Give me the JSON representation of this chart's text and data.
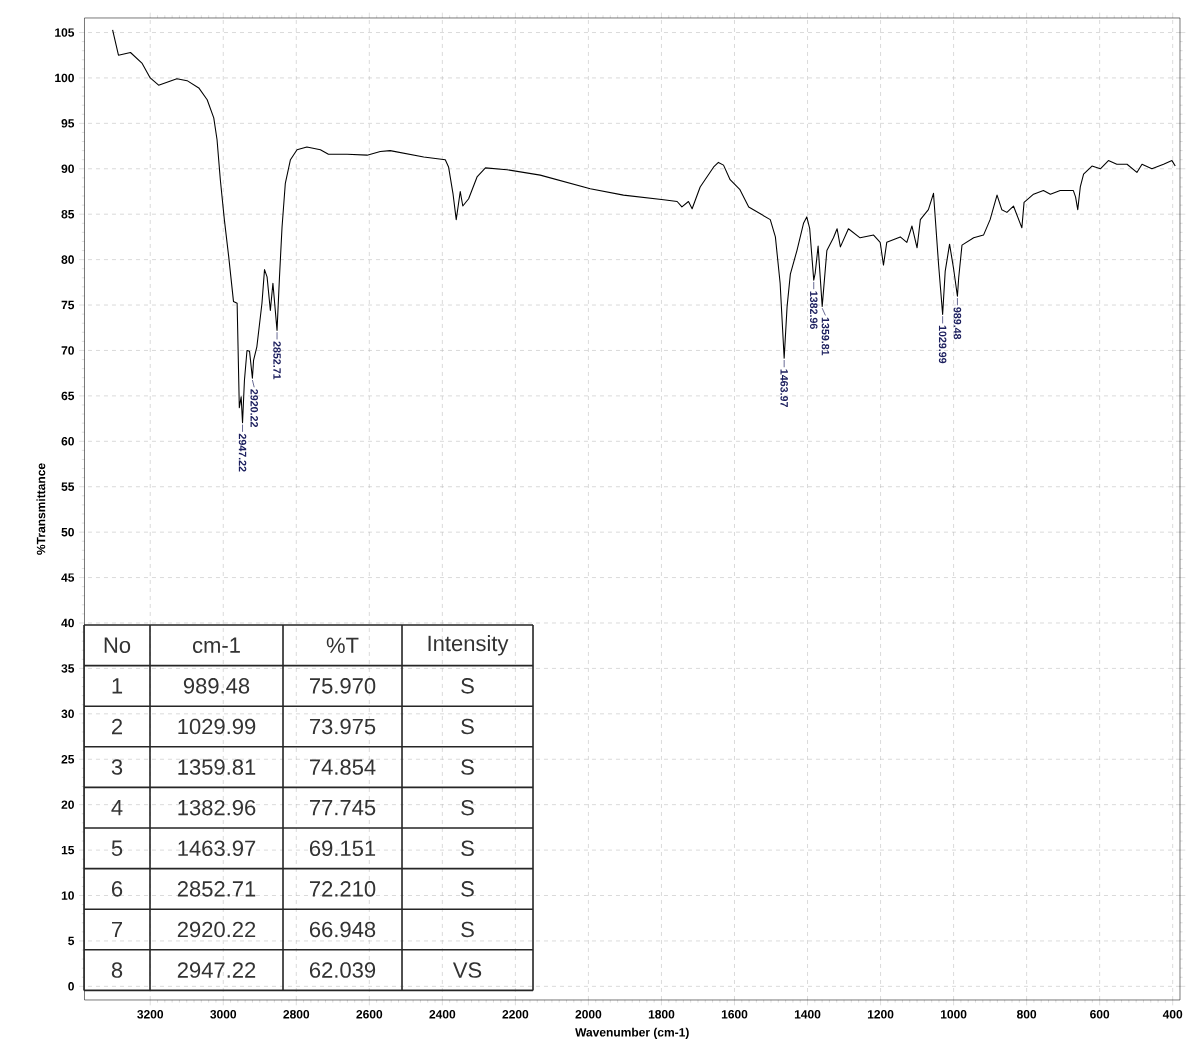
{
  "chart_data": {
    "type": "line",
    "xlabel": "Wavenumber (cm-1)",
    "ylabel": "%Transmittance",
    "xlim": [
      3380,
      380
    ],
    "ylim": [
      -1.5,
      106.6
    ],
    "xticks": [
      3200,
      3000,
      2800,
      2600,
      2400,
      2200,
      2000,
      1800,
      1600,
      1400,
      1200,
      1000,
      800,
      600,
      400
    ],
    "yticks": [
      0,
      5,
      10,
      15,
      20,
      25,
      30,
      35,
      40,
      45,
      50,
      55,
      60,
      65,
      70,
      75,
      80,
      85,
      90,
      95,
      100,
      105
    ],
    "grid": true,
    "marker": "none",
    "line_style": "solid",
    "series": [
      {
        "color": "#000000",
        "x": [
          3303,
          3287,
          3254,
          3222,
          3200,
          3177,
          3127,
          3099,
          3067,
          3044,
          3026,
          3017,
          3008,
          2997,
          2985,
          2972,
          2962,
          2956,
          2951,
          2947.22,
          2942,
          2935,
          2928,
          2920.22,
          2917,
          2908,
          2894,
          2887,
          2880,
          2871,
          2864,
          2852.71,
          2846,
          2839,
          2830,
          2816,
          2798,
          2771,
          2734,
          2712,
          2661,
          2606,
          2570,
          2543,
          2451,
          2392,
          2383,
          2371,
          2362,
          2351,
          2344,
          2328,
          2305,
          2282,
          2223,
          2132,
          1995,
          1904,
          1794,
          1757,
          1744,
          1726,
          1716,
          1694,
          1657,
          1644,
          1630,
          1612,
          1585,
          1561,
          1502,
          1488,
          1475,
          1463.97,
          1456,
          1447,
          1429,
          1411,
          1402,
          1394,
          1382.96,
          1379,
          1371,
          1359.81,
          1347,
          1329,
          1319,
          1310,
          1288,
          1256,
          1219,
          1201,
          1192,
          1183,
          1146,
          1128,
          1114,
          1100,
          1091,
          1069,
          1055,
          1041,
          1029.99,
          1023,
          1011,
          1000,
          989.48,
          986,
          977,
          945,
          918,
          900,
          881,
          868,
          854,
          836,
          813,
          807,
          781,
          754,
          735,
          708,
          672,
          666,
          660,
          653,
          644,
          621,
          598,
          576,
          553,
          525,
          498,
          484,
          457,
          425,
          402,
          393
        ],
        "values": [
          105.3,
          102.5,
          102.8,
          101.6,
          100.0,
          99.2,
          99.9,
          99.7,
          98.9,
          97.6,
          95.6,
          93.2,
          88.8,
          84.4,
          80.3,
          75.4,
          75.2,
          63.7,
          64.9,
          62.039,
          66.7,
          70.0,
          69.9,
          66.948,
          68.9,
          70.4,
          75.2,
          78.9,
          78.1,
          74.4,
          77.4,
          72.21,
          78.1,
          83.6,
          88.4,
          91.0,
          92.1,
          92.4,
          92.1,
          91.6,
          91.6,
          91.5,
          91.9,
          92.0,
          91.3,
          91.0,
          90.2,
          87.3,
          84.4,
          87.5,
          85.9,
          86.7,
          89.1,
          90.1,
          89.9,
          89.3,
          87.8,
          87.1,
          86.6,
          86.4,
          85.8,
          86.4,
          85.6,
          88.0,
          90.2,
          90.7,
          90.4,
          88.8,
          87.7,
          85.8,
          84.4,
          82.5,
          77.4,
          69.151,
          74.8,
          78.4,
          81.0,
          84.0,
          84.7,
          83.4,
          77.745,
          78.5,
          81.5,
          74.854,
          81.0,
          82.4,
          83.4,
          81.4,
          83.4,
          82.4,
          82.7,
          81.9,
          79.4,
          81.9,
          82.5,
          81.9,
          83.7,
          81.3,
          84.4,
          85.5,
          87.3,
          79.4,
          73.975,
          78.7,
          81.7,
          79.0,
          75.97,
          78.0,
          81.6,
          82.4,
          82.7,
          84.4,
          87.1,
          85.5,
          85.2,
          85.9,
          83.5,
          86.3,
          87.2,
          87.6,
          87.2,
          87.6,
          87.6,
          86.9,
          85.5,
          88.0,
          89.4,
          90.3,
          90.0,
          90.9,
          90.5,
          90.5,
          89.6,
          90.5,
          90.0,
          90.5,
          90.9,
          90.3
        ]
      }
    ],
    "annotations": [
      {
        "text": "2947.22",
        "x": 2947.22,
        "y": 62.039
      },
      {
        "text": "2920.22",
        "x": 2920.22,
        "y": 66.948
      },
      {
        "text": "2852.71",
        "x": 2852.71,
        "y": 72.21
      },
      {
        "text": "1463.97",
        "x": 1463.97,
        "y": 69.151
      },
      {
        "text": "1382.96",
        "x": 1382.96,
        "y": 77.745
      },
      {
        "text": "1359.81",
        "x": 1359.81,
        "y": 74.854
      },
      {
        "text": "1029.99",
        "x": 1029.99,
        "y": 73.975
      },
      {
        "text": "989.48",
        "x": 989.48,
        "y": 75.97
      },
      "No",
      "cm-1",
      "%T",
      "Intensity",
      "1",
      "989.48",
      "75.970",
      "S",
      "2",
      "1029.99",
      "73.975",
      "S",
      "3",
      "1359.81",
      "74.854",
      "S",
      "4",
      "1382.96",
      "77.745",
      "S",
      "5",
      "1463.97",
      "69.151",
      "S",
      "6",
      "2852.71",
      "72.210",
      "S",
      "7",
      "2920.22",
      "66.948",
      "S",
      "8",
      "2947.22",
      "62.039",
      "VS"
    ]
  }
}
